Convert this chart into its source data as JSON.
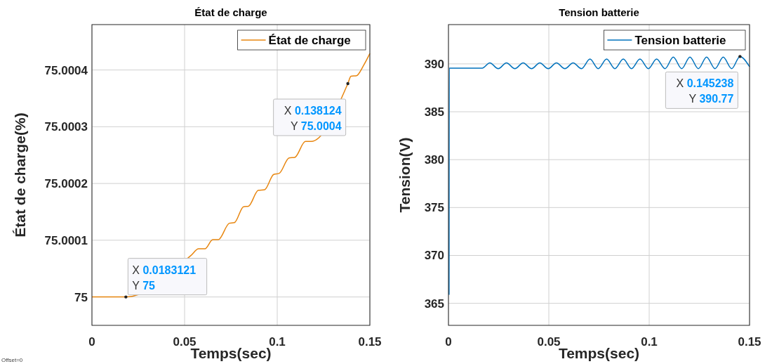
{
  "chart_data": [
    {
      "type": "line",
      "title": "État de charge",
      "xlabel": "Temps(sec)",
      "ylabel": "État de charge(%)",
      "xlim": [
        0,
        0.15
      ],
      "xticks": [
        0,
        0.05,
        0.1,
        0.15
      ],
      "ylim": [
        74.99995,
        75.00048
      ],
      "yticks": [
        {
          "value": 75,
          "label": "75"
        },
        {
          "value": 75.0001,
          "label": "75.0001"
        },
        {
          "value": 75.0002,
          "label": "75.0002"
        },
        {
          "value": 75.0003,
          "label": "75.0003"
        },
        {
          "value": 75.0004,
          "label": "75.0004"
        }
      ],
      "grid": true,
      "legend": "top right",
      "series": [
        {
          "name": "État de charge",
          "color": "#e8860f",
          "x": [
            0,
            0.0183121,
            0.0534,
            0.0576,
            0.061,
            0.0652,
            0.0682,
            0.0742,
            0.0769,
            0.0818,
            0.0845,
            0.0898,
            0.0932,
            0.0981,
            0.1011,
            0.1064,
            0.1095,
            0.1152,
            0.1182,
            0.138124,
            0.1398,
            0.1428,
            0.1466,
            0.15
          ],
          "values": [
            75,
            75,
            75.000073,
            75.000085,
            75.000085,
            75.000101,
            75.000101,
            75.00013,
            75.000131,
            75.000159,
            75.00016,
            75.000188,
            75.000189,
            75.000216,
            75.000218,
            75.000245,
            75.000246,
            75.000274,
            75.000274,
            75.000376,
            75.000389,
            75.00039,
            75.000408,
            75.000429
          ]
        }
      ],
      "annotations": [
        {
          "text": "X 0.0183121\nY 75",
          "x": 0.0183121,
          "y": 75
        },
        {
          "text": "X 0.138124\nY 75.0004",
          "x": 0.138124,
          "y": 75.000376
        },
        "Offset=0"
      ]
    },
    {
      "type": "line",
      "title": "Tension batterie",
      "xlabel": "Temps(sec)",
      "ylabel": "Tension(V)",
      "xlim": [
        0,
        0.15
      ],
      "xticks": [
        0,
        0.05,
        0.1,
        0.15
      ],
      "ylim": [
        362.7,
        394.1
      ],
      "yticks": [
        365,
        370,
        375,
        380,
        385,
        390
      ],
      "grid": true,
      "legend": "top right",
      "series": [
        {
          "name": "Tension batterie",
          "color": "#0072bd",
          "x": [
            0.0003,
            0.0004,
            0.0168,
            0.0206,
            0.0248,
            0.0289,
            0.0331,
            0.0372,
            0.0414,
            0.0455,
            0.0497,
            0.0538,
            0.058,
            0.0621,
            0.0663,
            0.0705,
            0.0746,
            0.0788,
            0.0829,
            0.0871,
            0.0912,
            0.0954,
            0.0996,
            0.1037,
            0.1079,
            0.112,
            0.1162,
            0.1203,
            0.1245,
            0.1286,
            0.1328,
            0.1369,
            0.1411,
            0.145238,
            0.15
          ],
          "values": [
            365.9,
            389.56,
            389.56,
            390.1,
            389.5,
            390.1,
            389.5,
            390.1,
            389.5,
            390.1,
            389.5,
            390.1,
            389.5,
            390.1,
            389.5,
            390.5,
            389.5,
            390.5,
            389.5,
            390.5,
            389.5,
            390.5,
            389.5,
            390.5,
            389.5,
            390.7,
            389.5,
            390.7,
            389.5,
            390.7,
            389.5,
            390.7,
            389.5,
            390.77,
            389.7
          ]
        }
      ],
      "annotations": [
        {
          "text": "X 0.145238\nY 390.77",
          "x": 0.145238,
          "y": 390.77
        }
      ]
    }
  ]
}
